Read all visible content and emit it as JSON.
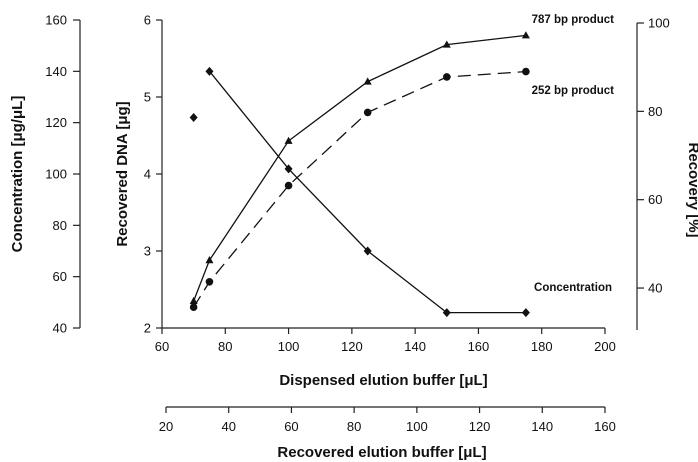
{
  "chart_data": {
    "type": "line",
    "xlabel": "Dispensed elution buffer [μL]",
    "xlim": [
      60,
      200
    ],
    "x_ticks": [
      60,
      80,
      100,
      120,
      140,
      160,
      180,
      200
    ],
    "x2label": "Recovered elution buffer [μL]",
    "x2_ticks": [
      20,
      40,
      60,
      80,
      100,
      120,
      140,
      160
    ],
    "y_left_outer": {
      "label": "Concentration [μg/μL]",
      "ticks": [
        40,
        60,
        80,
        100,
        120,
        140,
        160
      ],
      "range": [
        40,
        160
      ]
    },
    "y_left_inner": {
      "label": "Recovered DNA [μg]",
      "ticks": [
        2,
        3,
        4,
        5,
        6
      ],
      "range": [
        2,
        6
      ]
    },
    "y_right": {
      "label": "Recovery [%]",
      "ticks": [
        40,
        60,
        80,
        100
      ],
      "range": [
        30.5,
        100
      ]
    },
    "series": [
      {
        "name": "787 bp product",
        "axis": "dna",
        "marker": "triangle",
        "line": "solid",
        "x": [
          70,
          75,
          100,
          125,
          150,
          175
        ],
        "y": [
          2.35,
          2.88,
          4.43,
          5.2,
          5.68,
          5.8
        ]
      },
      {
        "name": "252 bp product",
        "axis": "dna",
        "marker": "circle",
        "line": "dashed",
        "x": [
          70,
          75,
          100,
          125,
          150,
          175
        ],
        "y": [
          2.27,
          2.6,
          3.85,
          4.8,
          5.26,
          5.33
        ]
      },
      {
        "name": "Concentration",
        "axis": "concentration",
        "marker": "diamond",
        "line": "solid",
        "x": [
          70,
          75,
          100,
          125,
          150,
          175
        ],
        "y": [
          122,
          140,
          102,
          70,
          46,
          46
        ]
      }
    ],
    "grid": false
  }
}
